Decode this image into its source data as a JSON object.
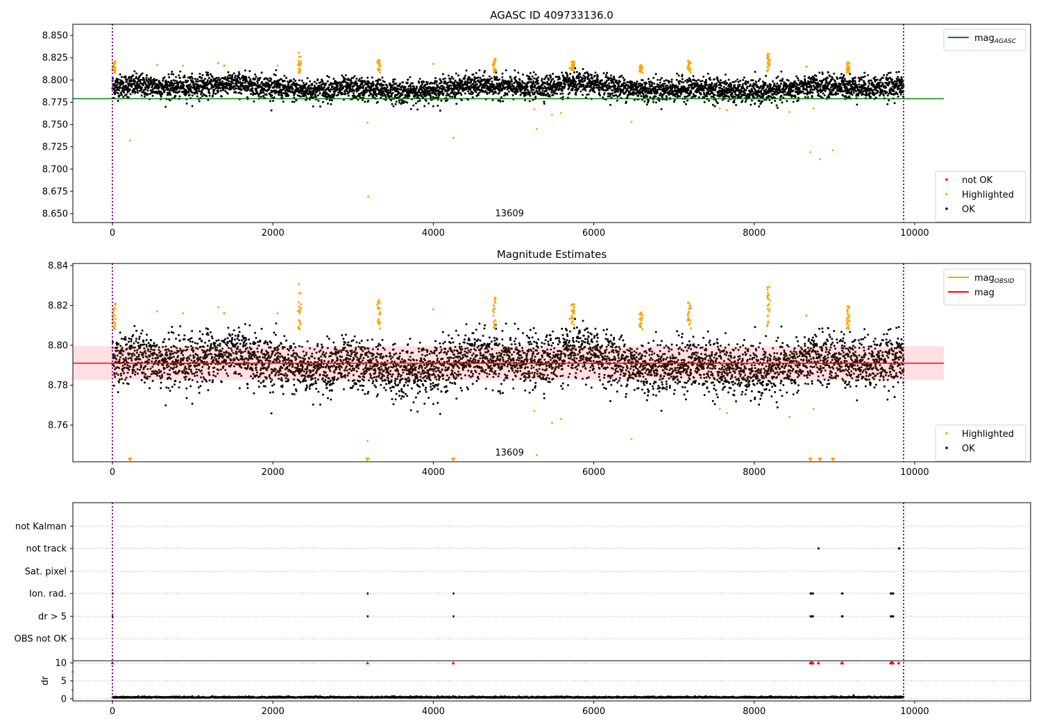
{
  "chart_data": [
    {
      "type": "scatter",
      "title": "AGASC ID 409733136.0",
      "xlim": [
        -493,
        11445
      ],
      "ylim": [
        8.64,
        8.8625
      ],
      "xticks": [
        0,
        2000,
        4000,
        6000,
        8000,
        10000
      ],
      "yticks": [
        8.65,
        8.675,
        8.7,
        8.725,
        8.75,
        8.775,
        8.8,
        8.825,
        8.85
      ],
      "ytick_labels": [
        "8.650",
        "8.675",
        "8.700",
        "8.725",
        "8.750",
        "8.775",
        "8.800",
        "8.825",
        "8.850"
      ],
      "mag_agasc": 8.779,
      "mag_agasc_xrange": [
        -493,
        10363
      ],
      "vlines": [
        0,
        9862
      ],
      "annotation": {
        "text": "13609",
        "x": 4950
      },
      "legend_top": {
        "position": "upper right",
        "entries": [
          {
            "label": "mag",
            "sub": "AGASC",
            "color": "#008000",
            "kind": "line"
          }
        ]
      },
      "legend_bottom": {
        "position": "lower right",
        "entries": [
          {
            "label": "not OK",
            "color": "#ff0000",
            "kind": "point"
          },
          {
            "label": "Highlighted",
            "color": "#ffa500",
            "kind": "point"
          },
          {
            "label": "OK",
            "color": "#000000",
            "kind": "point"
          }
        ]
      },
      "ok_series": {
        "x_range": [
          0,
          9862
        ],
        "n": 5200,
        "mean": 8.791,
        "sigma": 0.0075
      },
      "highlighted_outliers": [
        [
          220,
          8.732
        ],
        [
          3180,
          8.752
        ],
        [
          3190,
          8.669
        ],
        [
          4250,
          8.735
        ],
        [
          5260,
          8.767
        ],
        [
          5290,
          8.745
        ],
        [
          5480,
          8.761
        ],
        [
          5590,
          8.763
        ],
        [
          6470,
          8.753
        ],
        [
          8700,
          8.719
        ],
        [
          8820,
          8.711
        ],
        [
          8980,
          8.721
        ],
        [
          8440,
          8.764
        ],
        [
          8740,
          8.768
        ],
        [
          7660,
          8.766
        ],
        [
          7570,
          8.768
        ],
        [
          1320,
          8.819
        ],
        [
          560,
          8.817
        ],
        [
          880,
          8.816
        ],
        [
          4000,
          8.818
        ],
        [
          2060,
          8.816
        ]
      ],
      "flares": [
        [
          2330,
          8.832
        ],
        [
          3320,
          8.823
        ],
        [
          4760,
          8.826
        ],
        [
          5740,
          8.821
        ],
        [
          8180,
          8.831
        ],
        [
          9170,
          8.822
        ],
        [
          6590,
          8.817
        ],
        [
          7190,
          8.822
        ],
        [
          20,
          8.821
        ]
      ]
    },
    {
      "type": "scatter",
      "title": "Magnitude Estimates",
      "xlim": [
        -493,
        11445
      ],
      "ylim": [
        8.7416,
        8.841
      ],
      "xticks": [
        0,
        2000,
        4000,
        6000,
        8000,
        10000
      ],
      "yticks": [
        8.76,
        8.78,
        8.8,
        8.82,
        8.84
      ],
      "ytick_labels": [
        "8.76",
        "8.78",
        "8.80",
        "8.82",
        "8.84"
      ],
      "mag": 8.791,
      "mag_band": [
        8.7825,
        8.7995
      ],
      "mag_xrange": [
        -493,
        10363
      ],
      "vlines": [
        0,
        9862
      ],
      "annotation": {
        "text": "13609",
        "x": 4950
      },
      "clipped_low_markers": [
        220,
        3180,
        4250,
        8700,
        8820,
        8980
      ],
      "legend_top": {
        "position": "upper right",
        "entries": [
          {
            "label": "mag",
            "sub": "OBSID",
            "color": "#ffa500",
            "kind": "line"
          },
          {
            "label": "mag",
            "sub": "",
            "color": "#ff0000",
            "kind": "line"
          }
        ]
      },
      "legend_bottom": {
        "position": "lower right",
        "entries": [
          {
            "label": "Highlighted",
            "color": "#ffa500",
            "kind": "point"
          },
          {
            "label": "OK",
            "color": "#000000",
            "kind": "point"
          }
        ]
      }
    },
    {
      "type": "scatter",
      "title": "",
      "ylabel": "dr",
      "xlim": [
        -493,
        11445
      ],
      "xticks": [
        0,
        2000,
        4000,
        6000,
        8000,
        10000
      ],
      "flag_categories": [
        "not Kalman",
        "not track",
        "Sat. pixel",
        "Ion. rad.",
        "dr > 5",
        "OBS not OK"
      ],
      "flag_points": {
        "not track": [
          8800,
          9800,
          9810
        ],
        "Ion. rad.": [
          0,
          3180,
          4250,
          8700,
          8710,
          8720,
          8730,
          9090,
          9100,
          9700,
          9710,
          9720,
          9730
        ],
        "dr > 5": [
          0,
          3180,
          4250,
          8700,
          8710,
          8720,
          8730,
          9090,
          9100,
          9700,
          9710,
          9720,
          9730
        ]
      },
      "dr_ylim": [
        -0.6,
        10.6
      ],
      "dr_yticks": [
        0,
        5,
        10
      ],
      "dr_high_points": [
        0,
        3180,
        4250,
        8700,
        8710,
        8720,
        8730,
        8800,
        9090,
        9100,
        9700,
        9710,
        9720,
        9730,
        9800
      ],
      "dr_high_value": 10,
      "dr_baseline": 0.3
    }
  ]
}
